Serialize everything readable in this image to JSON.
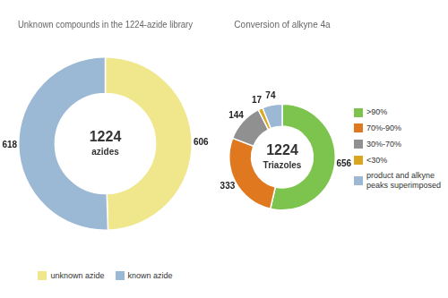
{
  "chart_data": [
    {
      "type": "doughnut",
      "title": "Unknown compounds in the 1224-azide library",
      "categories": [
        "unknown azide",
        "known azide"
      ],
      "values": [
        606,
        618
      ],
      "colors": [
        "#F0E68C",
        "#9BB8D4"
      ],
      "annotations": [
        "1224",
        "azides"
      ],
      "data_labels": true,
      "legend": "bottom"
    },
    {
      "type": "doughnut",
      "title": "Conversion of alkyne 4a",
      "categories": [
        ">90%",
        "70%-90%",
        "30%-70%",
        "<30%",
        "product and alkyne\npeaks superimposed"
      ],
      "values": [
        656,
        333,
        144,
        17,
        74
      ],
      "colors": [
        "#7DC44E",
        "#E07820",
        "#909090",
        "#DAA520",
        "#9BB8D4"
      ],
      "annotations": [
        "1224",
        "Triazoles"
      ],
      "data_labels": true,
      "legend": "right"
    }
  ]
}
